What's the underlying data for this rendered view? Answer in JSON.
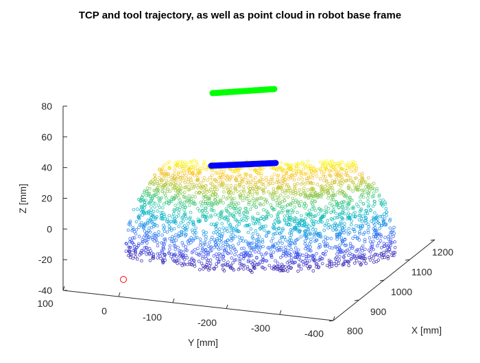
{
  "chart_data": {
    "type": "scatter",
    "title": "TCP and tool trajectory, as well as point cloud in robot base frame",
    "xlabel": "X [mm]",
    "ylabel": "Y [mm]",
    "zlabel": "Z [mm]",
    "xlim": [
      800,
      1200
    ],
    "ylim": [
      -400,
      100
    ],
    "zlim": [
      -40,
      80
    ],
    "x_ticks": [
      "800",
      "900",
      "1000",
      "1100",
      "1200"
    ],
    "y_ticks": [
      "100",
      "0",
      "-100",
      "-200",
      "-300",
      "-400"
    ],
    "z_ticks": [
      "80",
      "60",
      "40",
      "20",
      "0",
      "-20",
      "-40"
    ],
    "grid": false,
    "series": [
      {
        "kind": "surface-cloud",
        "description_colormap": "parula (height-coded)",
        "color_low": "#3e26a8",
        "color_high": "#f9fb0e",
        "z_range": [
          -25,
          45
        ]
      },
      {
        "kind": "trajectory",
        "color": "#0000ff",
        "z": 42
      },
      {
        "kind": "trajectory",
        "color": "#00ff00",
        "z": 90
      },
      {
        "kind": "marker",
        "color": "#ff0000",
        "z": -33
      }
    ]
  }
}
